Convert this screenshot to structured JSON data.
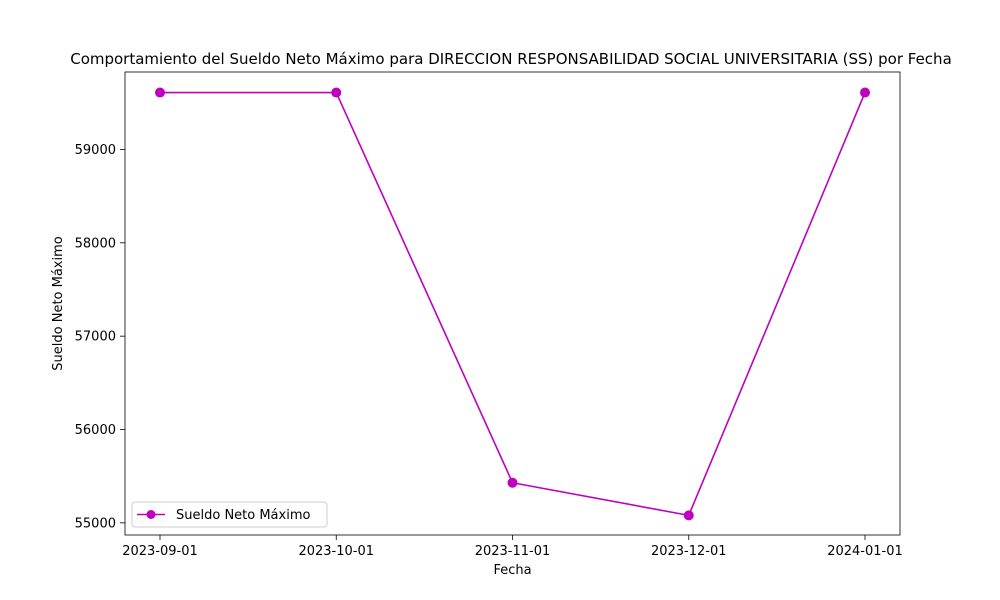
{
  "chart_data": {
    "type": "line",
    "title": "Comportamiento del Sueldo Neto Máximo para DIRECCION RESPONSABILIDAD SOCIAL UNIVERSITARIA (SS) por Fecha",
    "xlabel": "Fecha",
    "ylabel": "Sueldo Neto Máximo",
    "x": [
      "2023-09-01",
      "2023-10-01",
      "2023-11-01",
      "2023-12-01",
      "2024-01-01"
    ],
    "series": [
      {
        "name": "Sueldo Neto Máximo",
        "color": "#bf00bf",
        "marker": "circle",
        "values": [
          59610,
          59610,
          55430,
          55080,
          59610
        ]
      }
    ],
    "ylim": [
      54870,
      59830
    ],
    "yticks": [
      55000,
      56000,
      57000,
      58000,
      59000
    ],
    "grid": false,
    "legend_position": "lower-left"
  }
}
